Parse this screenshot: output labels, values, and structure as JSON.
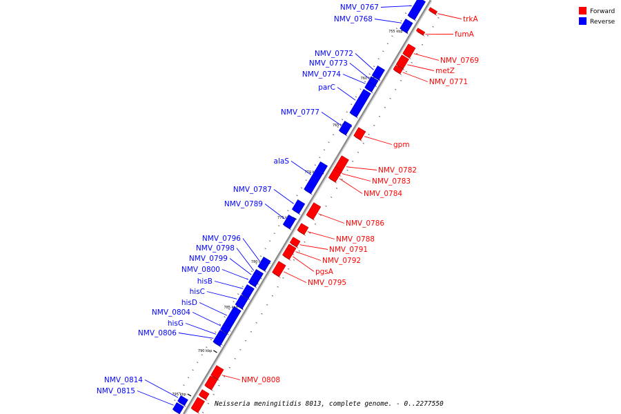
{
  "caption": "Neisseria meningitidis 8013, complete genome. - 0..2277550",
  "legend": [
    {
      "label": "Forward",
      "color": "#ff0000"
    },
    {
      "label": "Reverse",
      "color": "#0000ff"
    }
  ],
  "colors": {
    "forward": "#ff0000",
    "reverse": "#0000ff",
    "backbone": "#888888"
  },
  "ticks": [
    "755 kbp",
    "760 kbp",
    "765 kbp",
    "770 kbp",
    "775 kbp",
    "780 kbp",
    "785 kbp",
    "790 kbp",
    "795 kbp"
  ],
  "reverse_genes": [
    "NMV_0767",
    "NMV_0768",
    "NMV_0772",
    "NMV_0773",
    "NMV_0774",
    "parC",
    "NMV_0777",
    "alaS",
    "NMV_0787",
    "NMV_0789",
    "NMV_0796",
    "NMV_0798",
    "NMV_0799",
    "NMV_0800",
    "hisB",
    "hisC",
    "hisD",
    "NMV_0804",
    "hisG",
    "NMV_0806",
    "NMV_0814",
    "NMV_0815"
  ],
  "forward_genes": [
    "trkA",
    "fumA",
    "NMV_0769",
    "metZ",
    "NMV_0771",
    "gpm",
    "NMV_0782",
    "NMV_0783",
    "NMV_0784",
    "NMV_0786",
    "NMV_0788",
    "NMV_0791",
    "NMV_0792",
    "pgsA",
    "NMV_0795",
    "NMV_0808"
  ]
}
